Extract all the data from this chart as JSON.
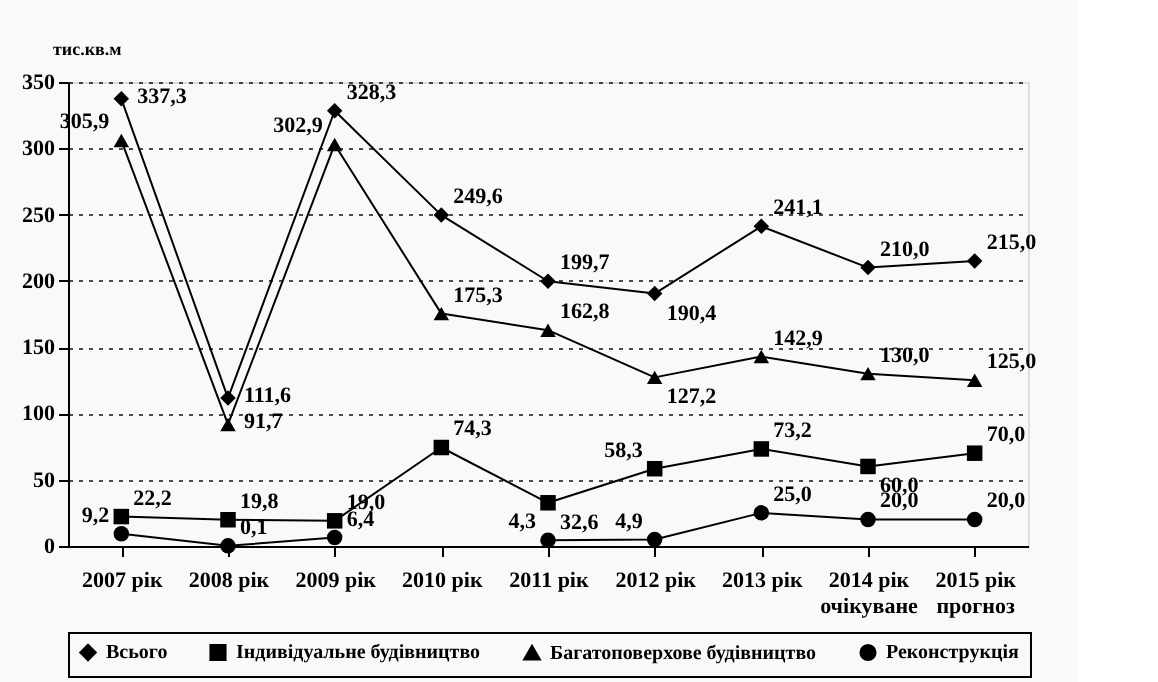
{
  "chart_data": {
    "type": "line",
    "ylabel": "тис.кв.м",
    "categories": [
      "2007 рік",
      "2008 рік",
      "2009 рік",
      "2010 рік",
      "2011 рік",
      "2012 рік",
      "2013 рік",
      "2014 рік\nочікуване",
      "2015 рік\nпрогноз"
    ],
    "series": [
      {
        "name": "Всього",
        "color": "#000000",
        "marker": "diamond",
        "values": [
          337.3,
          111.6,
          328.3,
          249.6,
          199.7,
          190.4,
          241.1,
          210.0,
          215.0
        ],
        "value_labels": [
          "337,3",
          "111,6",
          "328,3",
          "249,6",
          "199,7",
          "190,4",
          "241,1",
          "210,0",
          "215,0"
        ]
      },
      {
        "name": "Індивідуальне будівництво",
        "color": "#000000",
        "marker": "square",
        "values": [
          22.2,
          19.8,
          19.0,
          74.3,
          32.6,
          58.3,
          73.2,
          60.0,
          70.0
        ],
        "value_labels": [
          "22,2",
          "19,8",
          "19,0",
          "74,3",
          "32,6",
          "58,3",
          "73,2",
          "60,0",
          "70,0"
        ]
      },
      {
        "name": "Багатоповерхове будівництво",
        "color": "#000000",
        "marker": "triangle",
        "values": [
          305.9,
          91.7,
          302.9,
          175.3,
          162.8,
          127.2,
          142.9,
          130.0,
          125.0
        ],
        "value_labels": [
          "305,9",
          "91,7",
          "302,9",
          "175,3",
          "162,8",
          "127,2",
          "142,9",
          "130,0",
          "125,0"
        ]
      },
      {
        "name": "Реконструкція",
        "color": "#000000",
        "marker": "circle",
        "values": [
          9.2,
          0.1,
          6.4,
          null,
          4.3,
          4.9,
          25.0,
          20.0,
          20.0
        ],
        "value_labels": [
          "9,2",
          "0,1",
          "6,4",
          null,
          "4,3",
          "4,9",
          "25,0",
          "20,0",
          "20,0"
        ]
      }
    ],
    "ylim": [
      0,
      350
    ],
    "yticks": [
      0,
      50,
      100,
      150,
      200,
      250,
      300,
      350
    ],
    "grid": "y",
    "legend": "bottom",
    "line_style": "solid"
  }
}
